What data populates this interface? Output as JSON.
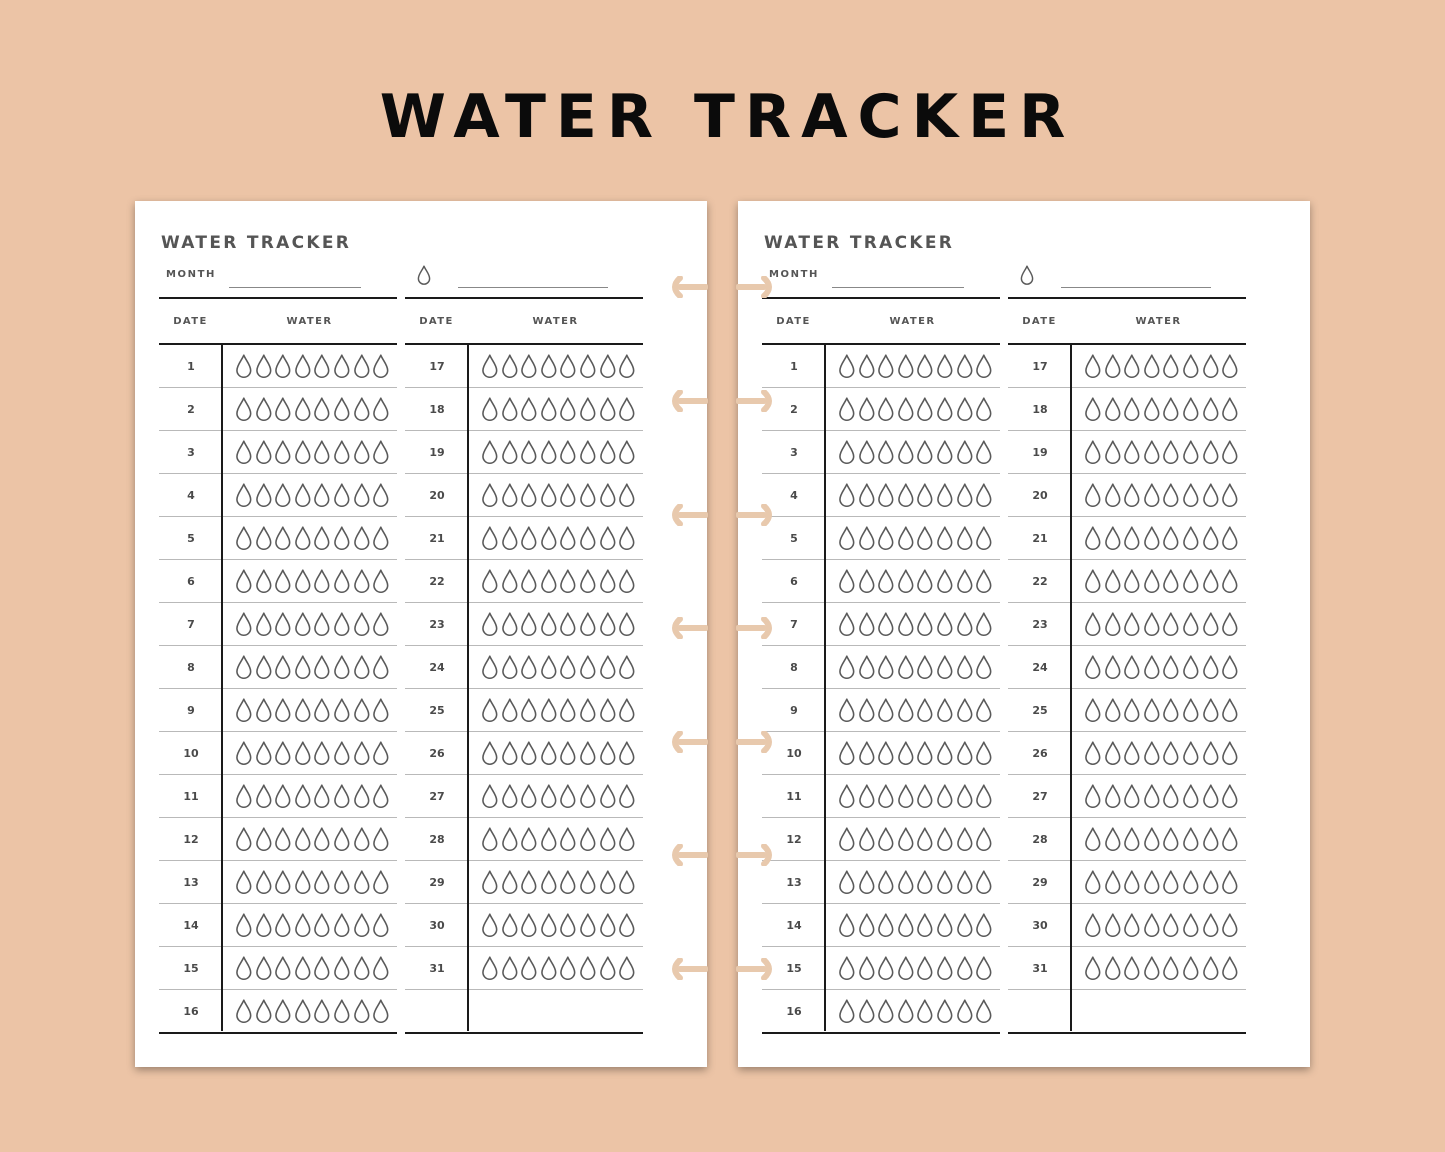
{
  "banner_title": "WATER TRACKER",
  "pages": [
    {
      "title": "WATER TRACKER",
      "month_label": "MONTH",
      "header_date": "DATE",
      "header_water": "WATER",
      "left_dates": [
        "1",
        "2",
        "3",
        "4",
        "5",
        "6",
        "7",
        "8",
        "9",
        "10",
        "11",
        "12",
        "13",
        "14",
        "15",
        "16"
      ],
      "right_dates": [
        "17",
        "18",
        "19",
        "20",
        "21",
        "22",
        "23",
        "24",
        "25",
        "26",
        "27",
        "28",
        "29",
        "30",
        "31",
        ""
      ]
    },
    {
      "title": "WATER TRACKER",
      "month_label": "MONTH",
      "header_date": "DATE",
      "header_water": "WATER",
      "left_dates": [
        "1",
        "2",
        "3",
        "4",
        "5",
        "6",
        "7",
        "8",
        "9",
        "10",
        "11",
        "12",
        "13",
        "14",
        "15",
        "16"
      ],
      "right_dates": [
        "17",
        "18",
        "19",
        "20",
        "21",
        "22",
        "23",
        "24",
        "25",
        "26",
        "27",
        "28",
        "29",
        "30",
        "31",
        ""
      ]
    }
  ],
  "drops_per_day": 8,
  "colors": {
    "background": "#ecc4a6",
    "page": "#ffffff",
    "ink": "#555555",
    "ring": "#e8c9ad"
  },
  "icons": {
    "drop": "water-drop-icon",
    "binder_ring": "binder-ring-icon"
  }
}
